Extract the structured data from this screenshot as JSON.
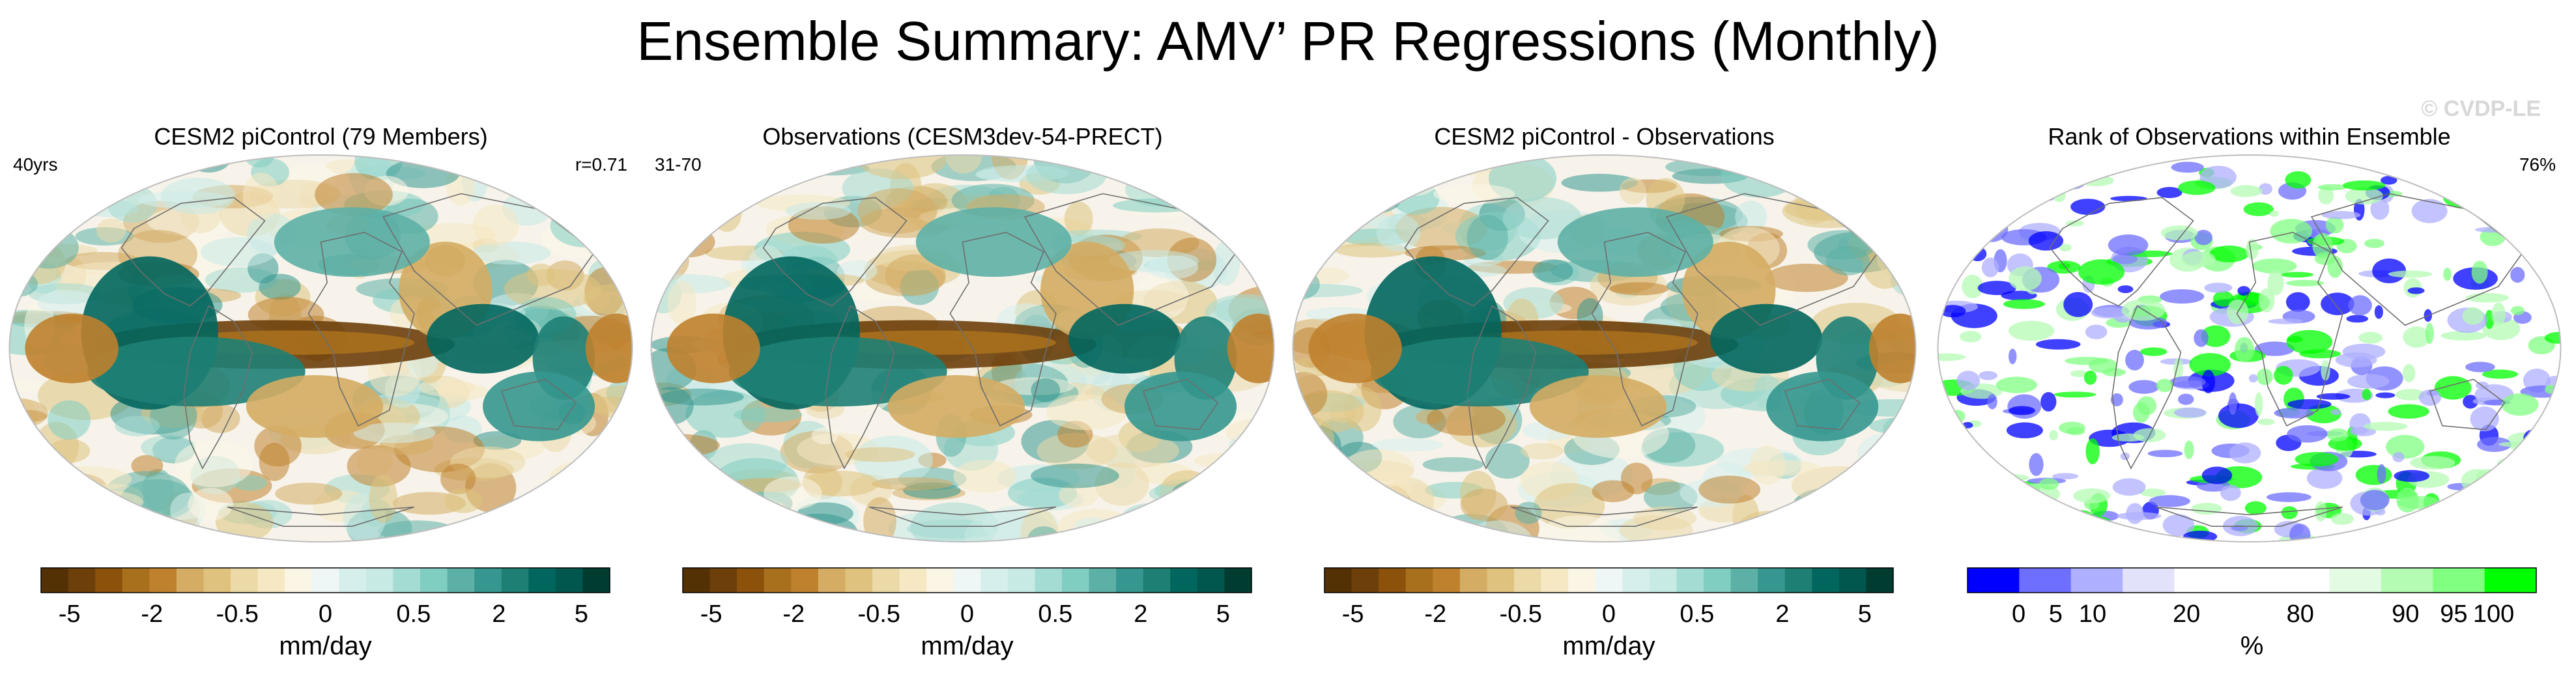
{
  "figure": {
    "title": "Ensemble Summary: AMV’ PR Regressions (Monthly)",
    "watermark": "© CVDP-LE"
  },
  "chart_data": [
    {
      "type": "heatmap",
      "title": "CESM2 piControl (79 Members)",
      "left_label": "40yrs",
      "right_label": "r=0.71",
      "field": "ensemble_mean_regression",
      "colorbar": {
        "label": "mm/day",
        "ticks": [
          "-5",
          "-2",
          "-0.5",
          "0",
          "0.5",
          "2",
          "5"
        ],
        "colors": [
          "#543005",
          "#6d3f0b",
          "#8c510a",
          "#a8701d",
          "#bf812d",
          "#d4ac63",
          "#dfc27d",
          "#ebd9a8",
          "#f6e8c3",
          "#fbf5e6",
          "#eef7f5",
          "#d6efec",
          "#c7eae5",
          "#a4dbd2",
          "#80cdc1",
          "#5db0a6",
          "#35978f",
          "#1e7f75",
          "#01665e",
          "#01564d",
          "#003c30"
        ]
      }
    },
    {
      "type": "heatmap",
      "title": "Observations (CESM3dev-54-PRECT)",
      "left_label": "31-70",
      "right_label": "",
      "field": "observed_regression",
      "colorbar": {
        "label": "mm/day",
        "ticks": [
          "-5",
          "-2",
          "-0.5",
          "0",
          "0.5",
          "2",
          "5"
        ],
        "colors": [
          "#543005",
          "#6d3f0b",
          "#8c510a",
          "#a8701d",
          "#bf812d",
          "#d4ac63",
          "#dfc27d",
          "#ebd9a8",
          "#f6e8c3",
          "#fbf5e6",
          "#eef7f5",
          "#d6efec",
          "#c7eae5",
          "#a4dbd2",
          "#80cdc1",
          "#5db0a6",
          "#35978f",
          "#1e7f75",
          "#01665e",
          "#01564d",
          "#003c30"
        ]
      }
    },
    {
      "type": "heatmap",
      "title": "CESM2 piControl - Observations",
      "left_label": "",
      "right_label": "",
      "field": "difference",
      "colorbar": {
        "label": "mm/day",
        "ticks": [
          "-5",
          "-2",
          "-0.5",
          "0",
          "0.5",
          "2",
          "5"
        ],
        "colors": [
          "#543005",
          "#6d3f0b",
          "#8c510a",
          "#a8701d",
          "#bf812d",
          "#d4ac63",
          "#dfc27d",
          "#ebd9a8",
          "#f6e8c3",
          "#fbf5e6",
          "#eef7f5",
          "#d6efec",
          "#c7eae5",
          "#a4dbd2",
          "#80cdc1",
          "#5db0a6",
          "#35978f",
          "#1e7f75",
          "#01665e",
          "#01564d",
          "#003c30"
        ]
      }
    },
    {
      "type": "heatmap",
      "title": "Rank of Observations within Ensemble",
      "left_label": "",
      "right_label": "76%",
      "field": "rank_percentile",
      "colorbar": {
        "label": "%",
        "ticks": [
          "0",
          "5",
          "10",
          "20",
          "80",
          "90",
          "95",
          "100"
        ],
        "colors": [
          "#0000ff",
          "#6e6eff",
          "#afafff",
          "#e2e2fb",
          "#ffffff",
          "#ffffff",
          "#ffffff",
          "#e3fbe3",
          "#b4fbb4",
          "#80ff80",
          "#00ff00"
        ]
      }
    }
  ]
}
